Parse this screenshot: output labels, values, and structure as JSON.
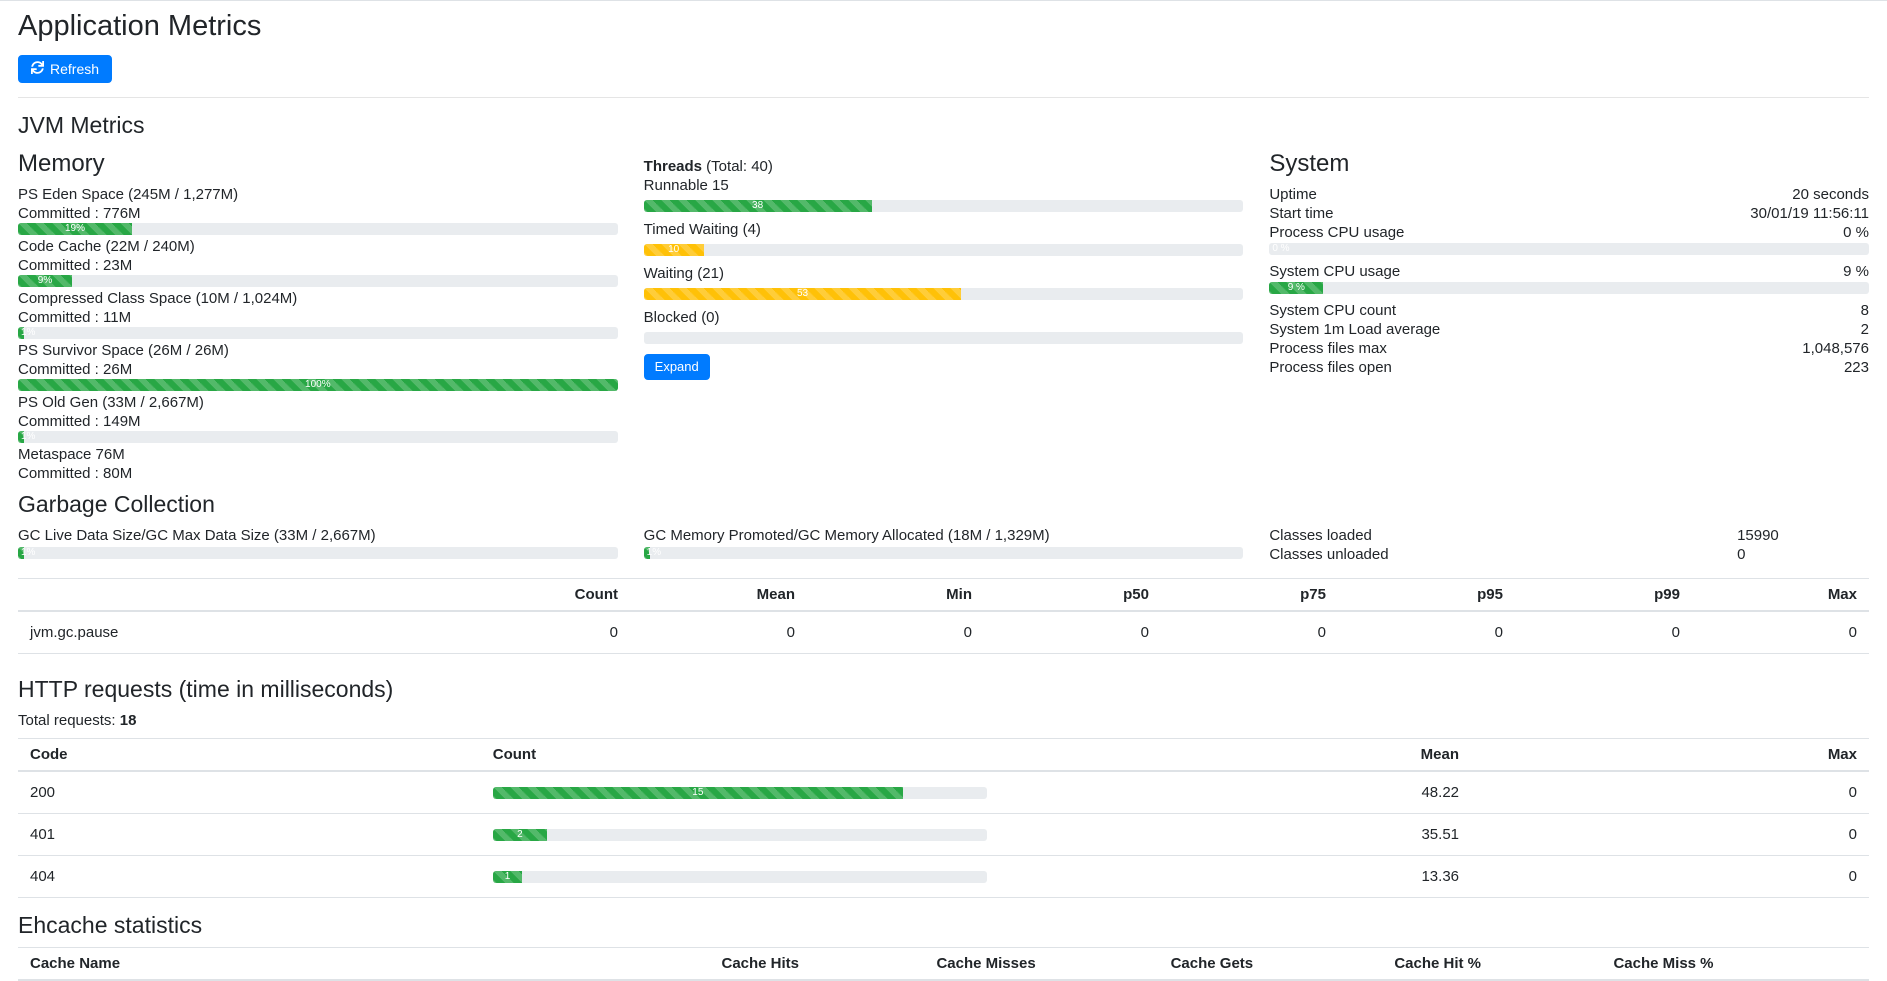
{
  "page": {
    "title": "Application Metrics",
    "refresh_label": "Refresh"
  },
  "colors": {
    "success": "#28a745",
    "warning": "#ffc107",
    "primary": "#007bff"
  },
  "jvm": {
    "title": "JVM Metrics",
    "memory": {
      "title": "Memory",
      "items": [
        {
          "label": "PS Eden Space (245M / 1,277M)",
          "committed": "Committed : 776M",
          "has_bar": true,
          "percent": 19,
          "bar_label": "19%"
        },
        {
          "label": "Code Cache (22M / 240M)",
          "committed": "Committed : 23M",
          "has_bar": true,
          "percent": 9,
          "bar_label": "9%"
        },
        {
          "label": "Compressed Class Space (10M / 1,024M)",
          "committed": "Committed : 11M",
          "has_bar": true,
          "percent": 1,
          "bar_label": "1%"
        },
        {
          "label": "PS Survivor Space (26M / 26M)",
          "committed": "Committed : 26M",
          "has_bar": true,
          "percent": 100,
          "bar_label": "100%"
        },
        {
          "label": "PS Old Gen (33M / 2,667M)",
          "committed": "Committed : 149M",
          "has_bar": true,
          "percent": 1,
          "bar_label": "1%"
        },
        {
          "label": "Metaspace 76M",
          "committed": "Committed : 80M",
          "has_bar": false
        }
      ]
    },
    "threads": {
      "title_bold": "Threads",
      "title_rest": " (Total: 40)",
      "expand_label": "Expand",
      "items": [
        {
          "label": "Runnable 15",
          "percent": 38,
          "bar_label": "38",
          "color": "success"
        },
        {
          "label": "Timed Waiting (4)",
          "percent": 10,
          "bar_label": "10",
          "color": "warning"
        },
        {
          "label": "Waiting (21)",
          "percent": 53,
          "bar_label": "53",
          "color": "warning"
        },
        {
          "label": "Blocked (0)",
          "percent": 0,
          "bar_label": "",
          "color": "success"
        }
      ]
    },
    "system": {
      "title": "System",
      "rows": [
        {
          "label": "Uptime",
          "value": "20 seconds"
        },
        {
          "label": "Start time",
          "value": "30/01/19 11:56:11"
        },
        {
          "label": "Process CPU usage",
          "value": "0 %",
          "bar": {
            "percent": 0,
            "label": "0 %",
            "color": "success"
          }
        },
        {
          "label": "System CPU usage",
          "value": "9 %",
          "bar": {
            "percent": 9,
            "label": "9 %",
            "color": "success"
          }
        },
        {
          "label": "System CPU count",
          "value": "8"
        },
        {
          "label": "System 1m Load average",
          "value": "2"
        },
        {
          "label": "Process files max",
          "value": "1,048,576"
        },
        {
          "label": "Process files open",
          "value": "223"
        }
      ]
    }
  },
  "gc": {
    "title": "Garbage Collection",
    "live_data": {
      "label": "GC Live Data Size/GC Max Data Size (33M / 2,667M)",
      "percent": 1,
      "bar_label": "1%"
    },
    "promoted": {
      "label": "GC Memory Promoted/GC Memory Allocated (18M / 1,329M)",
      "percent": 1,
      "bar_label": "1%"
    },
    "classes": [
      {
        "label": "Classes loaded",
        "value": "15990"
      },
      {
        "label": "Classes unloaded",
        "value": "0"
      }
    ],
    "table": {
      "name_header": "",
      "headers": [
        "Count",
        "Mean",
        "Min",
        "p50",
        "p75",
        "p95",
        "p99",
        "Max"
      ],
      "rows": [
        {
          "name": "jvm.gc.pause",
          "values": [
            "0",
            "0",
            "0",
            "0",
            "0",
            "0",
            "0",
            "0"
          ]
        }
      ]
    }
  },
  "http": {
    "title": "HTTP requests (time in milliseconds)",
    "total_label": "Total requests:",
    "total_value": "18",
    "headers": {
      "code": "Code",
      "count": "Count",
      "mean": "Mean",
      "max": "Max"
    },
    "rows": [
      {
        "code": "200",
        "count_label": "15",
        "percent": 83,
        "mean": "48.22",
        "max": "0"
      },
      {
        "code": "401",
        "count_label": "2",
        "percent": 11,
        "mean": "35.51",
        "max": "0"
      },
      {
        "code": "404",
        "count_label": "1",
        "percent": 6,
        "mean": "13.36",
        "max": "0"
      }
    ]
  },
  "ehcache": {
    "title": "Ehcache statistics",
    "name_header": "Cache Name",
    "headers": [
      "Cache Hits",
      "Cache Misses",
      "Cache Gets",
      "Cache Hit %",
      "Cache Miss %"
    ]
  }
}
